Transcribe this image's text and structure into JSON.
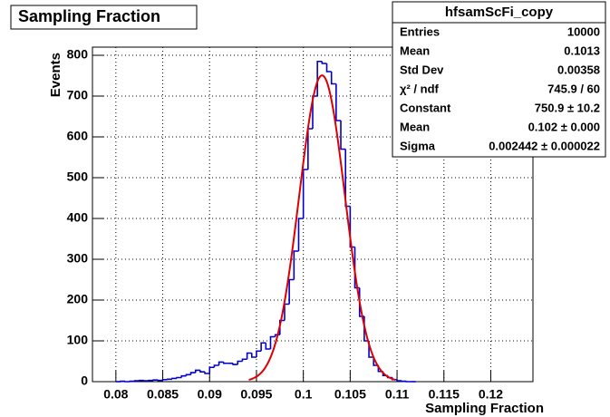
{
  "chart_data": {
    "type": "histogram",
    "title": "Sampling Fraction",
    "x_label": "Sampling Fraction",
    "y_label": "Events",
    "color": "#0000cc",
    "bins": [
      0.08,
      0.0805,
      0.081,
      0.0815,
      0.082,
      0.0825,
      0.083,
      0.0835,
      0.084,
      0.0845,
      0.085,
      0.0855,
      0.086,
      0.0865,
      0.087,
      0.0875,
      0.088,
      0.0885,
      0.089,
      0.0895,
      0.09,
      0.0905,
      0.091,
      0.0915,
      0.092,
      0.0925,
      0.093,
      0.0935,
      0.094,
      0.0945,
      0.095,
      0.0955,
      0.096,
      0.0965,
      0.097,
      0.0975,
      0.098,
      0.0985,
      0.099,
      0.0995,
      0.1,
      0.1005,
      0.101,
      0.1015,
      0.102,
      0.1025,
      0.103,
      0.1035,
      0.104,
      0.1045,
      0.105,
      0.1055,
      0.106,
      0.1065,
      0.107,
      0.1075,
      0.108,
      0.1085,
      0.109,
      0.1095,
      0.11,
      0.1105,
      0.111,
      0.1115,
      0.112
    ],
    "values": [
      0,
      1,
      0,
      1,
      2,
      3,
      2,
      3,
      4,
      3,
      5,
      6,
      8,
      10,
      14,
      17,
      22,
      28,
      24,
      20,
      35,
      40,
      48,
      45,
      45,
      42,
      50,
      55,
      70,
      60,
      75,
      95,
      80,
      110,
      115,
      150,
      190,
      250,
      320,
      400,
      520,
      620,
      700,
      785,
      780,
      760,
      730,
      640,
      570,
      430,
      330,
      230,
      160,
      100,
      60,
      40,
      25,
      15,
      10,
      5,
      2,
      1,
      0,
      0
    ],
    "xlim": [
      0.0775,
      0.1245
    ],
    "ylim": [
      0,
      820
    ],
    "xticks": [
      0.08,
      0.085,
      0.09,
      0.095,
      0.1,
      0.105,
      0.11,
      0.115,
      0.12
    ],
    "yticks": [
      0,
      100,
      200,
      300,
      400,
      500,
      600,
      700,
      800
    ],
    "grid": true,
    "stats": {
      "title": "hfsamScFi_copy",
      "rows": [
        {
          "name": "Entries",
          "value": 10000
        },
        {
          "name": "Mean",
          "value": 0.1013
        },
        {
          "name": "Std Dev",
          "value": 0.00358
        },
        {
          "name": "χ² / ndf",
          "label": "745.9 / 60"
        },
        {
          "name": "Constant",
          "value": 750.9,
          "label": "750.9 ± 10.2"
        },
        {
          "name": "Mean",
          "value": 0.102,
          "label": "0.102 ± 0.000"
        },
        {
          "name": "Sigma",
          "value": 0.002442,
          "label": "0.002442 ± 0.000022"
        }
      ]
    },
    "fit_color": "#dd0000"
  }
}
